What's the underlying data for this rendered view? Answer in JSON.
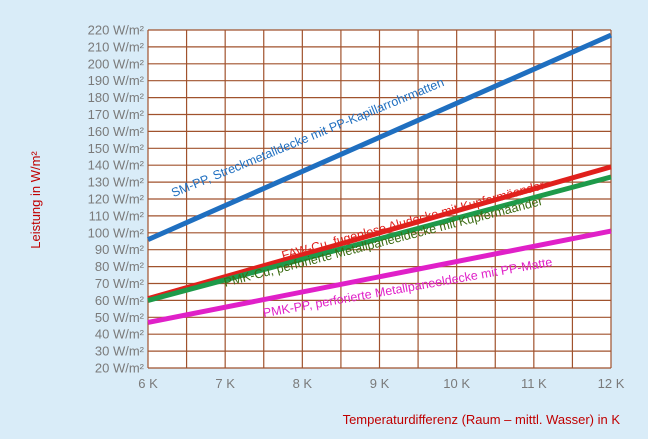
{
  "chart_data": {
    "type": "line",
    "title": "",
    "xlabel": "Temperaturdifferenz (Raum – mittl. Wasser) in K",
    "ylabel": "Leistung in W/m²",
    "x": [
      6,
      12
    ],
    "xlim": [
      6,
      12
    ],
    "ylim": [
      20,
      220
    ],
    "x_ticks": [
      "6 K",
      "7 K",
      "8 K",
      "9 K",
      "10 K",
      "11 K",
      "12 K"
    ],
    "y_ticks": [
      "20 W/m²",
      "30 W/m²",
      "40 W/m²",
      "50 W/m²",
      "60 W/m²",
      "70 W/m²",
      "80 W/m²",
      "90 W/m²",
      "100 W/m²",
      "110 W/m²",
      "120 W/m²",
      "130 W/m²",
      "140 W/m²",
      "150 W/m²",
      "160 W/m²",
      "170 W/m²",
      "180 W/m²",
      "190 W/m²",
      "200 W/m²",
      "210 W/m²",
      "220 W/m²"
    ],
    "grid": true,
    "series": [
      {
        "name": "SM-PP, Streckmetalldecke mit PP-Kapillarrohrmatten",
        "color": "#1f6fc0",
        "x": [
          6,
          12
        ],
        "y": [
          96,
          217
        ]
      },
      {
        "name": "FAW-Cu, fugenlose Aludecke mit Kupfermäander",
        "color": "#e0201c",
        "x": [
          6,
          12
        ],
        "y": [
          61,
          139
        ]
      },
      {
        "name": "PMK-Cu, perforierte Metallpaneeldecke mit Kupfermäander",
        "color": "#1e9a4a",
        "x": [
          6,
          12
        ],
        "y": [
          60,
          133
        ]
      },
      {
        "name": "PMK-PP, perforierte Metallpaneeldecke mit PP-Matte",
        "color": "#e020c8",
        "x": [
          6,
          12
        ],
        "y": [
          47,
          101
        ]
      }
    ],
    "annotations": [
      {
        "text": "SM-PP, Streckmetalldecke mit PP-Kapillarrohrmatten",
        "color": "#1f6fc0",
        "x": 6.33,
        "y": 121,
        "angle": -22.4
      },
      {
        "text": "FAW-Cu, fugenlose Aludecke mit Kupfermäander",
        "color": "#e0201c",
        "x": 7.75,
        "y": 84,
        "angle": -15.2
      },
      {
        "text": "PMK-Cu, perforierte Metallpaneeldecke mit Kupfermäander",
        "color": "#3a6a10",
        "x": 7.0,
        "y": 68,
        "angle": -14.5
      },
      {
        "text": "PMK-PP, perforierte Metallpaneeldecke mit PP-Matte",
        "color": "#e020c8",
        "x": 7.5,
        "y": 50,
        "angle": -10.1
      }
    ],
    "colors": {
      "background": "#d9ecf8",
      "plot_bg": "#ffffff",
      "grid": "#a0522d",
      "tick_text": "#7a7a7a",
      "axis_label": "#c00000"
    }
  }
}
